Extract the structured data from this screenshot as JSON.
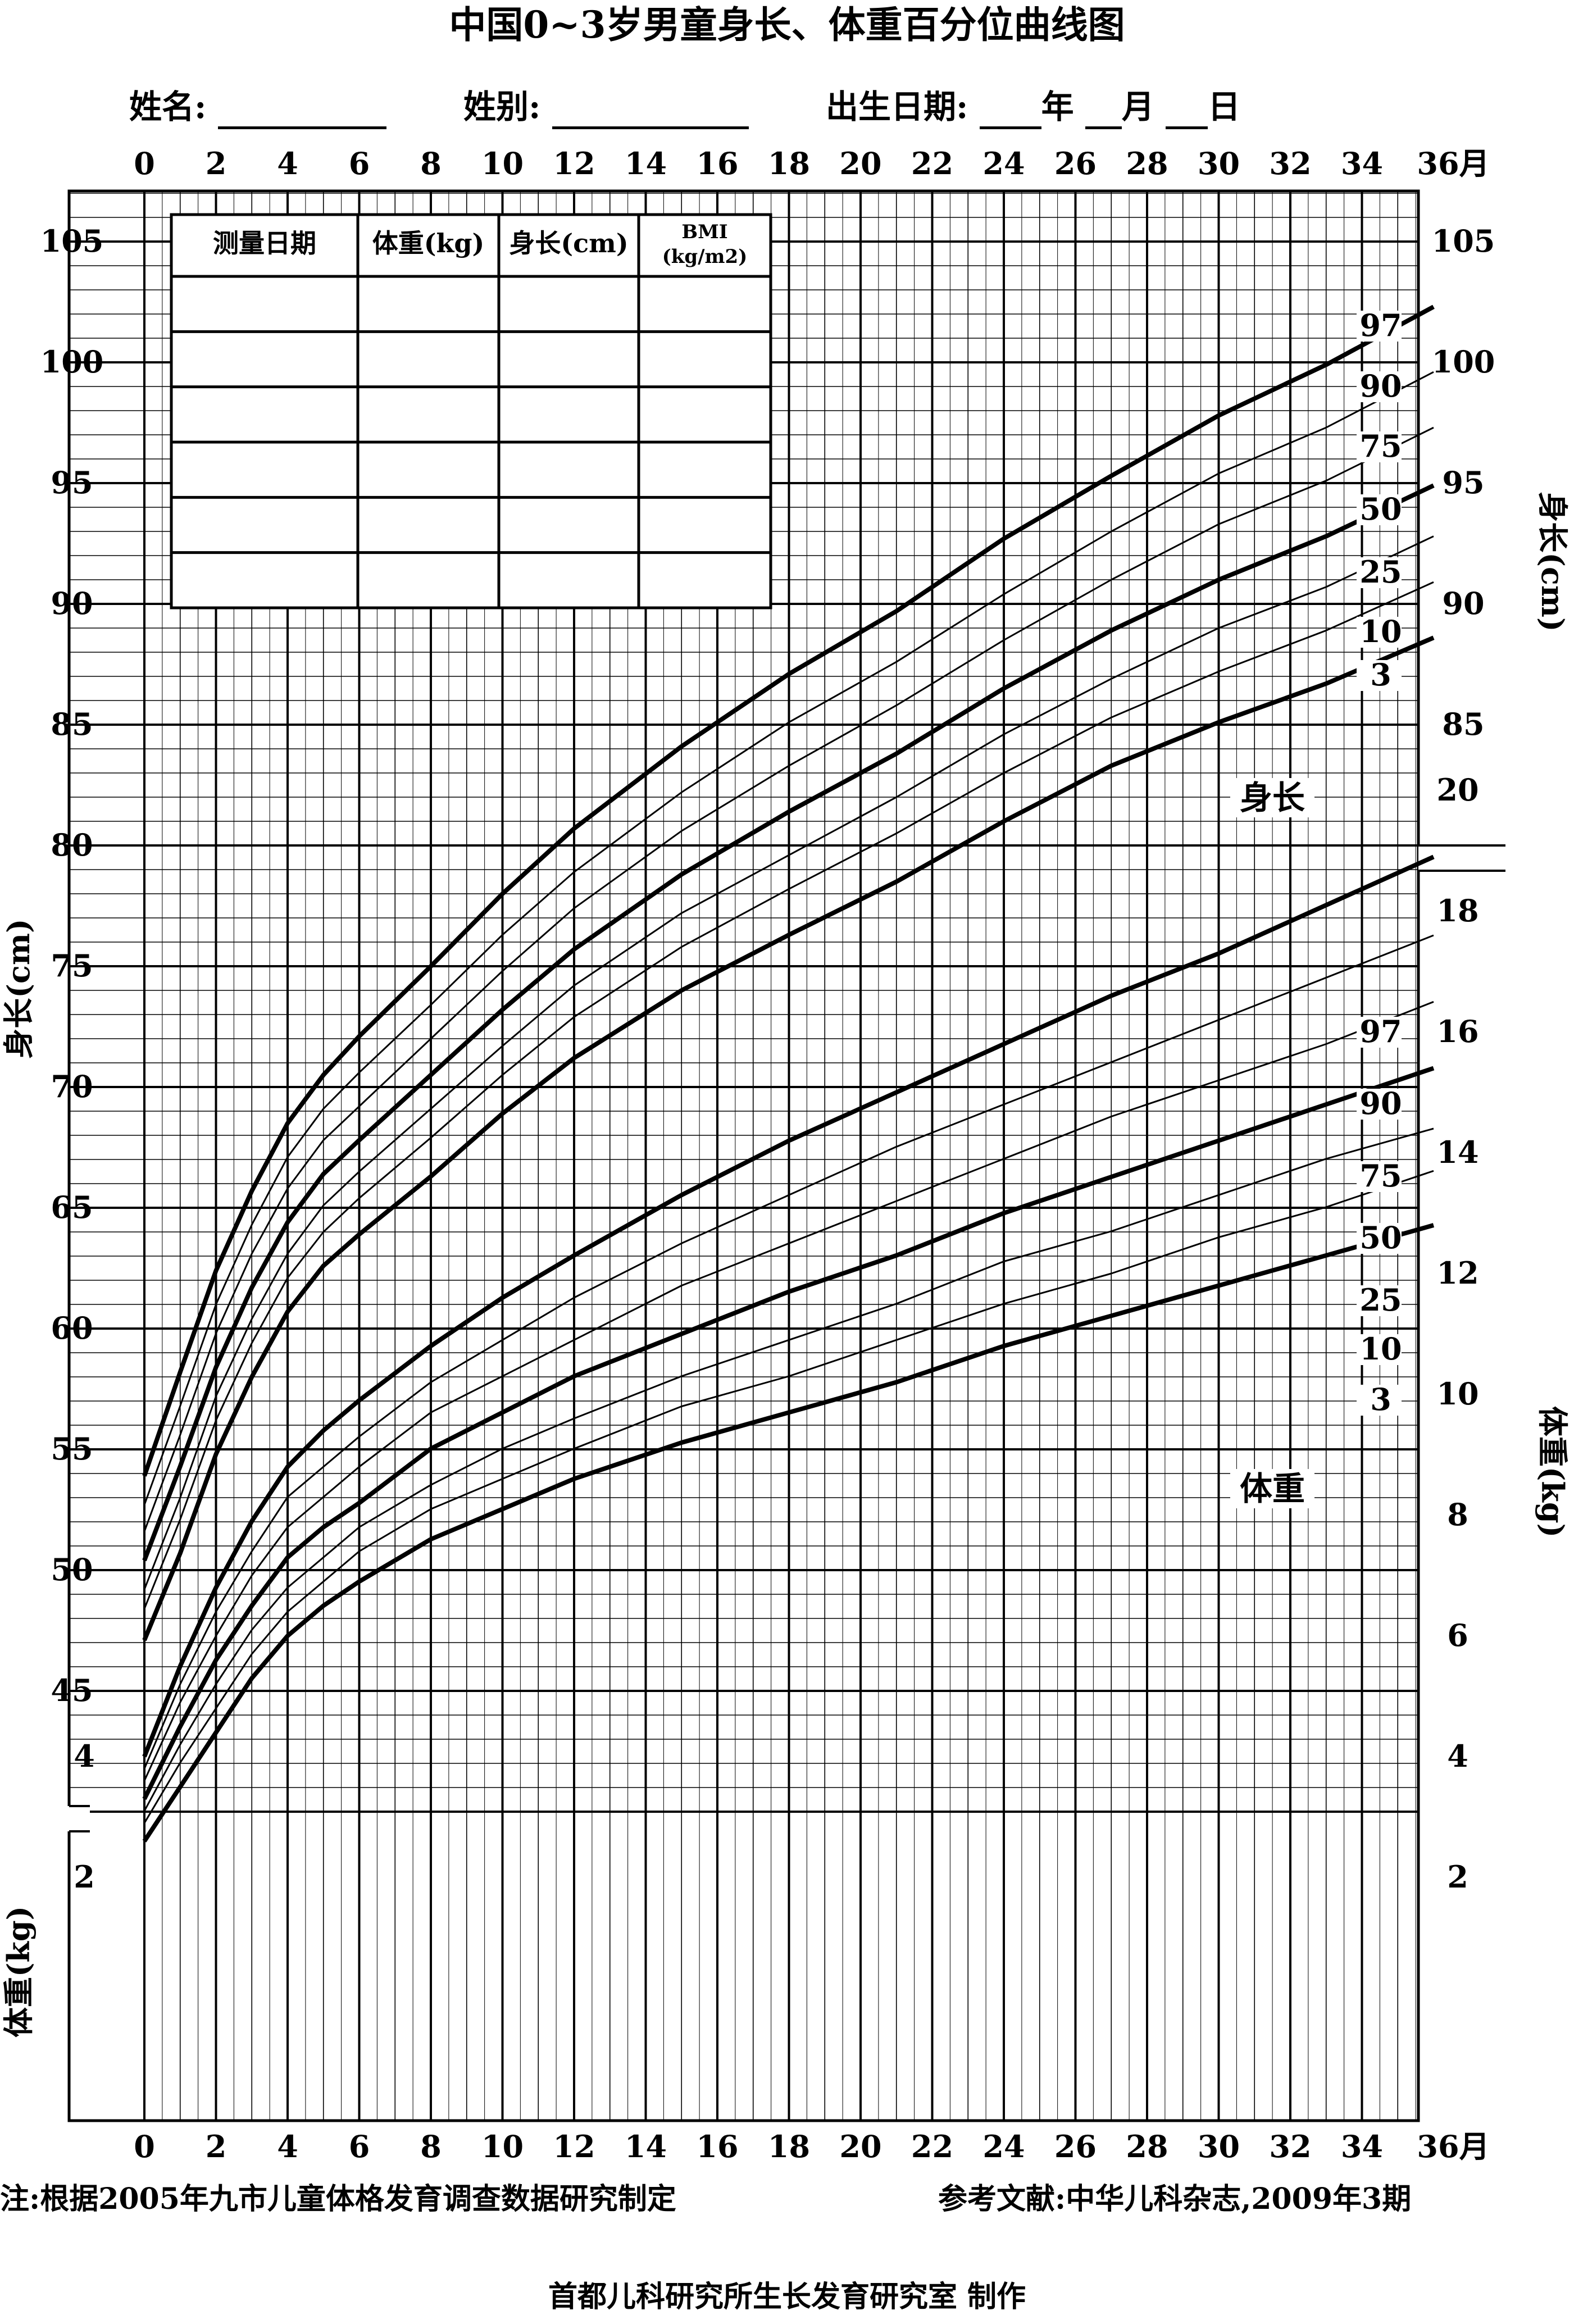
{
  "header": {
    "title": "中国0~3岁男童身长、体重百分位曲线图",
    "name_label": "姓名:",
    "sex_label": "姓别:",
    "birth_label": "出生日期:",
    "year": "年",
    "month": "月",
    "day": "日"
  },
  "record_table": {
    "columns": [
      "测量日期",
      "体重(kg)",
      "身长(cm)",
      "BMI",
      "(kg/m2)"
    ],
    "empty_rows": 6
  },
  "footer": {
    "note": "注:根据2005年九市儿童体格发育调查数据研究制定",
    "reference": "参考文献:中华儿科杂志,2009年3期",
    "maker": "首都儿科研究所生长发育研究室  制作"
  },
  "chart_data": {
    "type": "line",
    "title": "中国0~3岁男童身长、体重百分位曲线图",
    "x": {
      "label": "月",
      "range": [
        0,
        36
      ],
      "ticks": [
        "0",
        "2",
        "4",
        "6",
        "8",
        "10",
        "12",
        "14",
        "16",
        "18",
        "20",
        "22",
        "24",
        "26",
        "28",
        "30",
        "32",
        "34",
        "36月"
      ]
    },
    "height_axis": {
      "label": "身长(cm)",
      "range": [
        40,
        109
      ],
      "ticks": [
        45,
        50,
        55,
        60,
        65,
        70,
        75,
        80,
        85,
        90,
        95,
        100,
        105
      ]
    },
    "weight_axis_left": {
      "label": "体重(kg)",
      "range": [
        0,
        5
      ],
      "ticks": [
        2,
        4
      ]
    },
    "weight_axis_right": {
      "label": "体重(kg)",
      "range": [
        0,
        21
      ],
      "ticks": [
        2,
        4,
        6,
        8,
        10,
        12,
        14,
        16,
        18,
        20
      ]
    },
    "height_right_ticks": [
      85,
      90,
      95,
      100,
      105
    ],
    "grid": true,
    "curve_name_height": "身长",
    "curve_name_weight": "体重",
    "months": [
      0,
      1,
      2,
      3,
      4,
      5,
      6,
      8,
      10,
      12,
      15,
      18,
      21,
      24,
      27,
      30,
      33,
      36
    ],
    "height": [
      {
        "name": "3",
        "bold": true,
        "values": [
          47.1,
          50.7,
          54.8,
          58.0,
          60.7,
          62.6,
          63.9,
          66.3,
          68.9,
          71.2,
          74.0,
          76.3,
          78.5,
          81.0,
          83.3,
          85.1,
          86.7,
          88.6
        ]
      },
      {
        "name": "10",
        "bold": false,
        "values": [
          48.4,
          52.1,
          56.2,
          59.4,
          62.1,
          64.0,
          65.4,
          67.9,
          70.5,
          72.9,
          75.8,
          78.2,
          80.5,
          83.0,
          85.3,
          87.2,
          88.9,
          90.9
        ]
      },
      {
        "name": "25",
        "bold": false,
        "values": [
          49.2,
          53.0,
          57.2,
          60.4,
          63.1,
          65.1,
          66.5,
          69.1,
          71.7,
          74.2,
          77.2,
          79.6,
          82.0,
          84.6,
          86.9,
          89.0,
          90.7,
          92.8
        ]
      },
      {
        "name": "50",
        "bold": true,
        "values": [
          50.4,
          54.3,
          58.4,
          61.7,
          64.4,
          66.4,
          67.8,
          70.5,
          73.2,
          75.7,
          78.8,
          81.4,
          83.8,
          86.5,
          88.9,
          91.0,
          92.8,
          94.9
        ]
      },
      {
        "name": "75",
        "bold": false,
        "values": [
          51.6,
          55.6,
          59.8,
          63.1,
          65.8,
          67.8,
          69.2,
          72.0,
          74.8,
          77.4,
          80.6,
          83.3,
          85.8,
          88.5,
          91.0,
          93.3,
          95.1,
          97.3
        ]
      },
      {
        "name": "90",
        "bold": false,
        "values": [
          52.7,
          56.8,
          61.0,
          64.3,
          67.1,
          69.1,
          70.6,
          73.4,
          76.3,
          78.9,
          82.2,
          85.1,
          87.6,
          90.4,
          93.0,
          95.4,
          97.3,
          99.6
        ]
      },
      {
        "name": "97",
        "bold": true,
        "values": [
          53.9,
          58.2,
          62.4,
          65.7,
          68.5,
          70.5,
          72.1,
          75.0,
          78.0,
          80.7,
          84.1,
          87.1,
          89.7,
          92.7,
          95.3,
          97.8,
          99.9,
          102.3
        ]
      }
    ],
    "weight": [
      {
        "name": "3",
        "bold": true,
        "values": [
          2.6,
          3.5,
          4.4,
          5.3,
          6.0,
          6.5,
          6.9,
          7.6,
          8.1,
          8.6,
          9.2,
          9.7,
          10.2,
          10.8,
          11.3,
          11.8,
          12.3,
          12.8
        ]
      },
      {
        "name": "10",
        "bold": false,
        "values": [
          2.9,
          3.9,
          4.8,
          5.7,
          6.4,
          6.9,
          7.4,
          8.1,
          8.6,
          9.1,
          9.8,
          10.3,
          10.9,
          11.5,
          12.0,
          12.6,
          13.1,
          13.7
        ]
      },
      {
        "name": "25",
        "bold": false,
        "values": [
          3.1,
          4.2,
          5.2,
          6.1,
          6.8,
          7.3,
          7.8,
          8.5,
          9.1,
          9.6,
          10.3,
          10.9,
          11.5,
          12.2,
          12.7,
          13.3,
          13.9,
          14.4
        ]
      },
      {
        "name": "50",
        "bold": true,
        "values": [
          3.3,
          4.5,
          5.6,
          6.5,
          7.3,
          7.8,
          8.2,
          9.1,
          9.7,
          10.3,
          11.0,
          11.7,
          12.3,
          13.0,
          13.6,
          14.2,
          14.8,
          15.4
        ]
      },
      {
        "name": "75",
        "bold": false,
        "values": [
          3.6,
          4.9,
          6.0,
          7.0,
          7.8,
          8.3,
          8.8,
          9.7,
          10.3,
          10.9,
          11.8,
          12.5,
          13.2,
          13.9,
          14.6,
          15.2,
          15.8,
          16.5
        ]
      },
      {
        "name": "90",
        "bold": false,
        "values": [
          3.8,
          5.2,
          6.4,
          7.4,
          8.3,
          8.8,
          9.3,
          10.2,
          10.9,
          11.6,
          12.5,
          13.3,
          14.1,
          14.8,
          15.5,
          16.2,
          16.9,
          17.6
        ]
      },
      {
        "name": "97",
        "bold": true,
        "values": [
          4.0,
          5.5,
          6.8,
          7.9,
          8.8,
          9.4,
          9.9,
          10.8,
          11.6,
          12.3,
          13.3,
          14.2,
          15.0,
          15.8,
          16.6,
          17.3,
          18.1,
          18.9
        ]
      }
    ]
  }
}
